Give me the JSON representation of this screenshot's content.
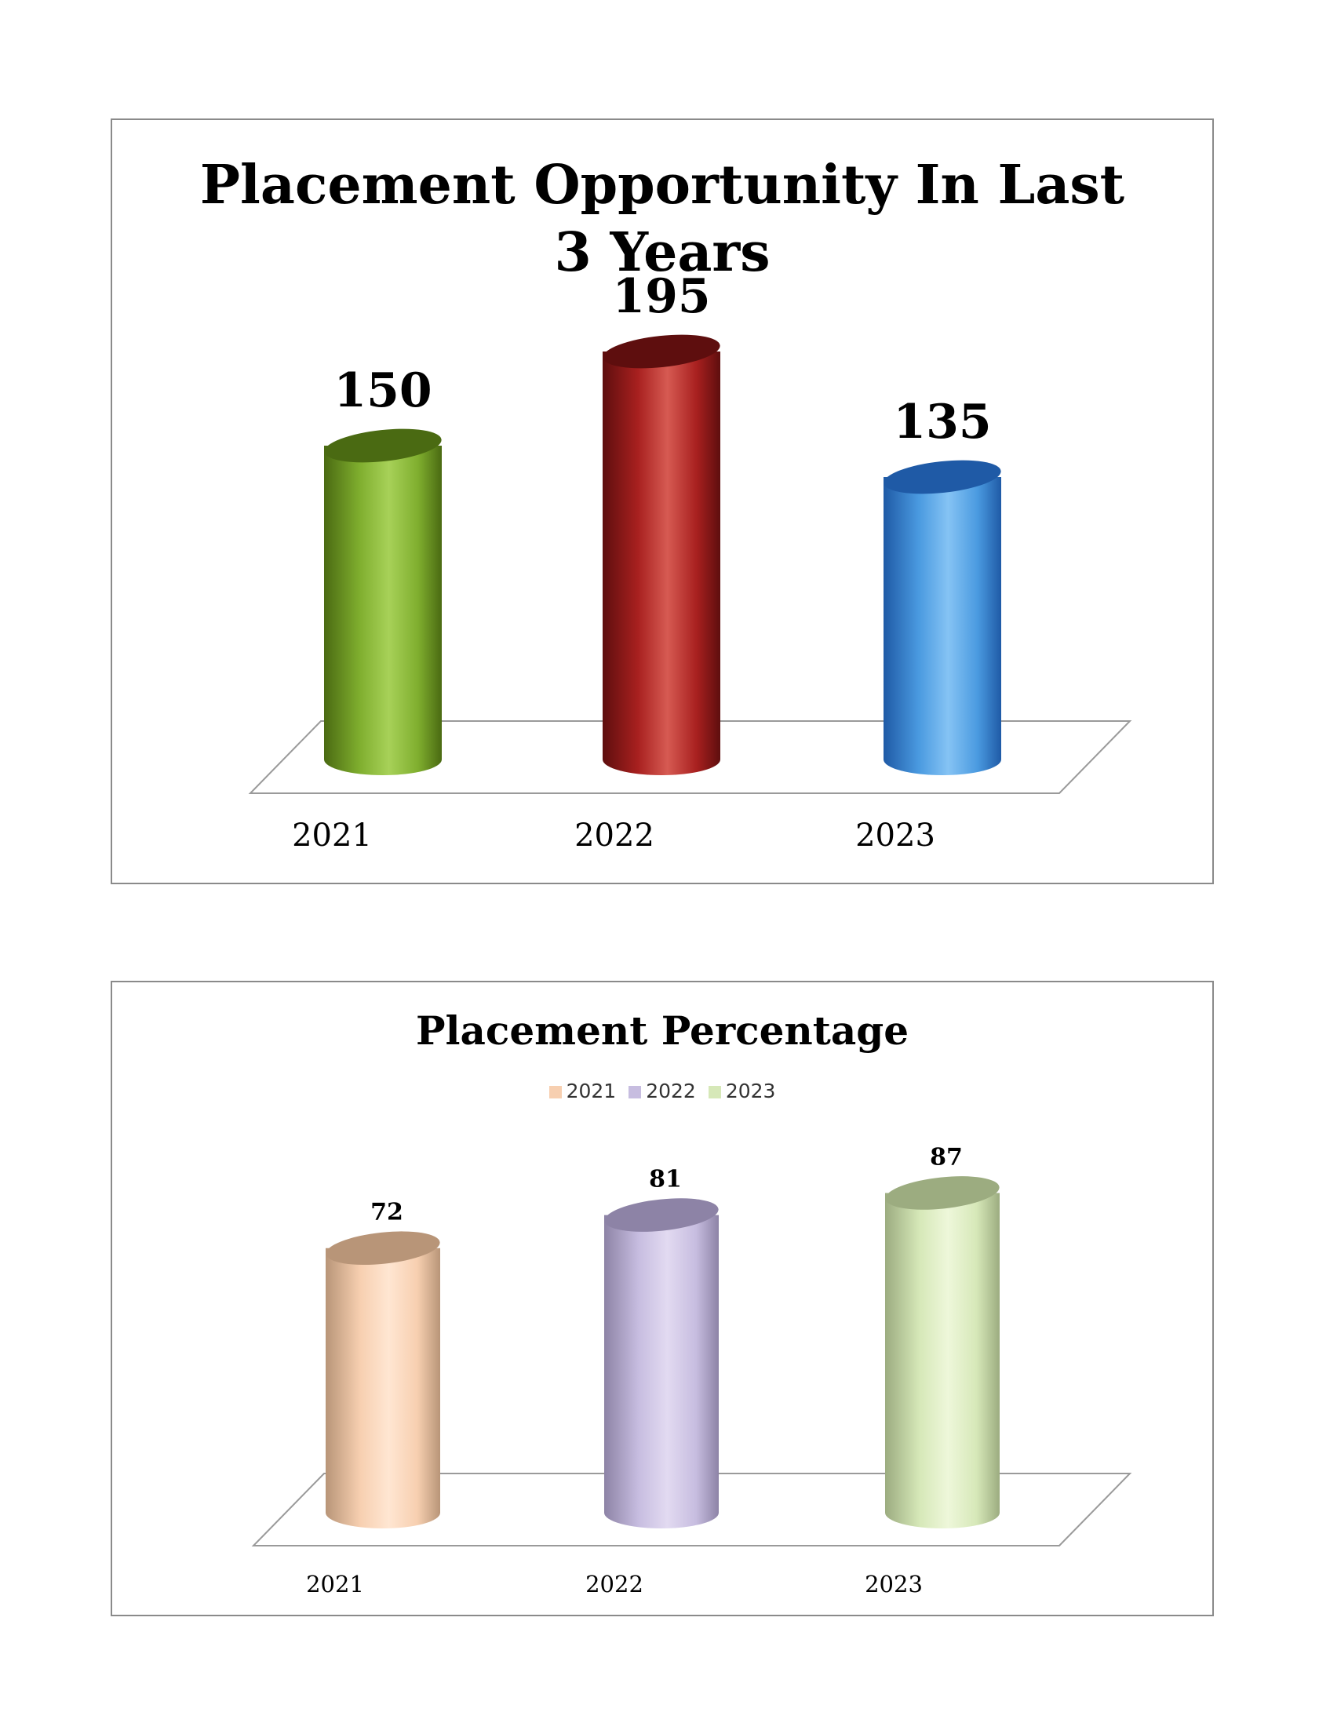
{
  "chart_data": [
    {
      "type": "bar",
      "title_lines": [
        "Placement Opportunity In Last",
        "3 Years"
      ],
      "categories": [
        "2021",
        "2022",
        "2023"
      ],
      "values": [
        150,
        195,
        135
      ],
      "ylim": [
        0,
        210
      ],
      "grid": false,
      "legend": "none",
      "colors": {
        "2021": {
          "base": "#7fae2e",
          "light": "#a7d158",
          "dark": "#4a6a12"
        },
        "2022": {
          "base": "#a8201f",
          "light": "#d65a52",
          "dark": "#5e0e0e"
        },
        "2023": {
          "base": "#4a9ae0",
          "light": "#85c3f4",
          "dark": "#1f5aa6"
        }
      }
    },
    {
      "type": "bar",
      "title": "Placement Percentage",
      "categories": [
        "2021",
        "2022",
        "2023"
      ],
      "values": [
        72,
        81,
        87
      ],
      "ylim": [
        0,
        95
      ],
      "grid": false,
      "legend": "top",
      "legend_entries": [
        "2021",
        "2022",
        "2023"
      ],
      "colors": {
        "2021": {
          "base": "#f7cfb0",
          "light": "#ffe6d2",
          "dark": "#b89578"
        },
        "2022": {
          "base": "#c7bde0",
          "light": "#e2daf1",
          "dark": "#8d83a6"
        },
        "2023": {
          "base": "#d6e8b8",
          "light": "#eef7da",
          "dark": "#9cac80"
        }
      }
    }
  ]
}
